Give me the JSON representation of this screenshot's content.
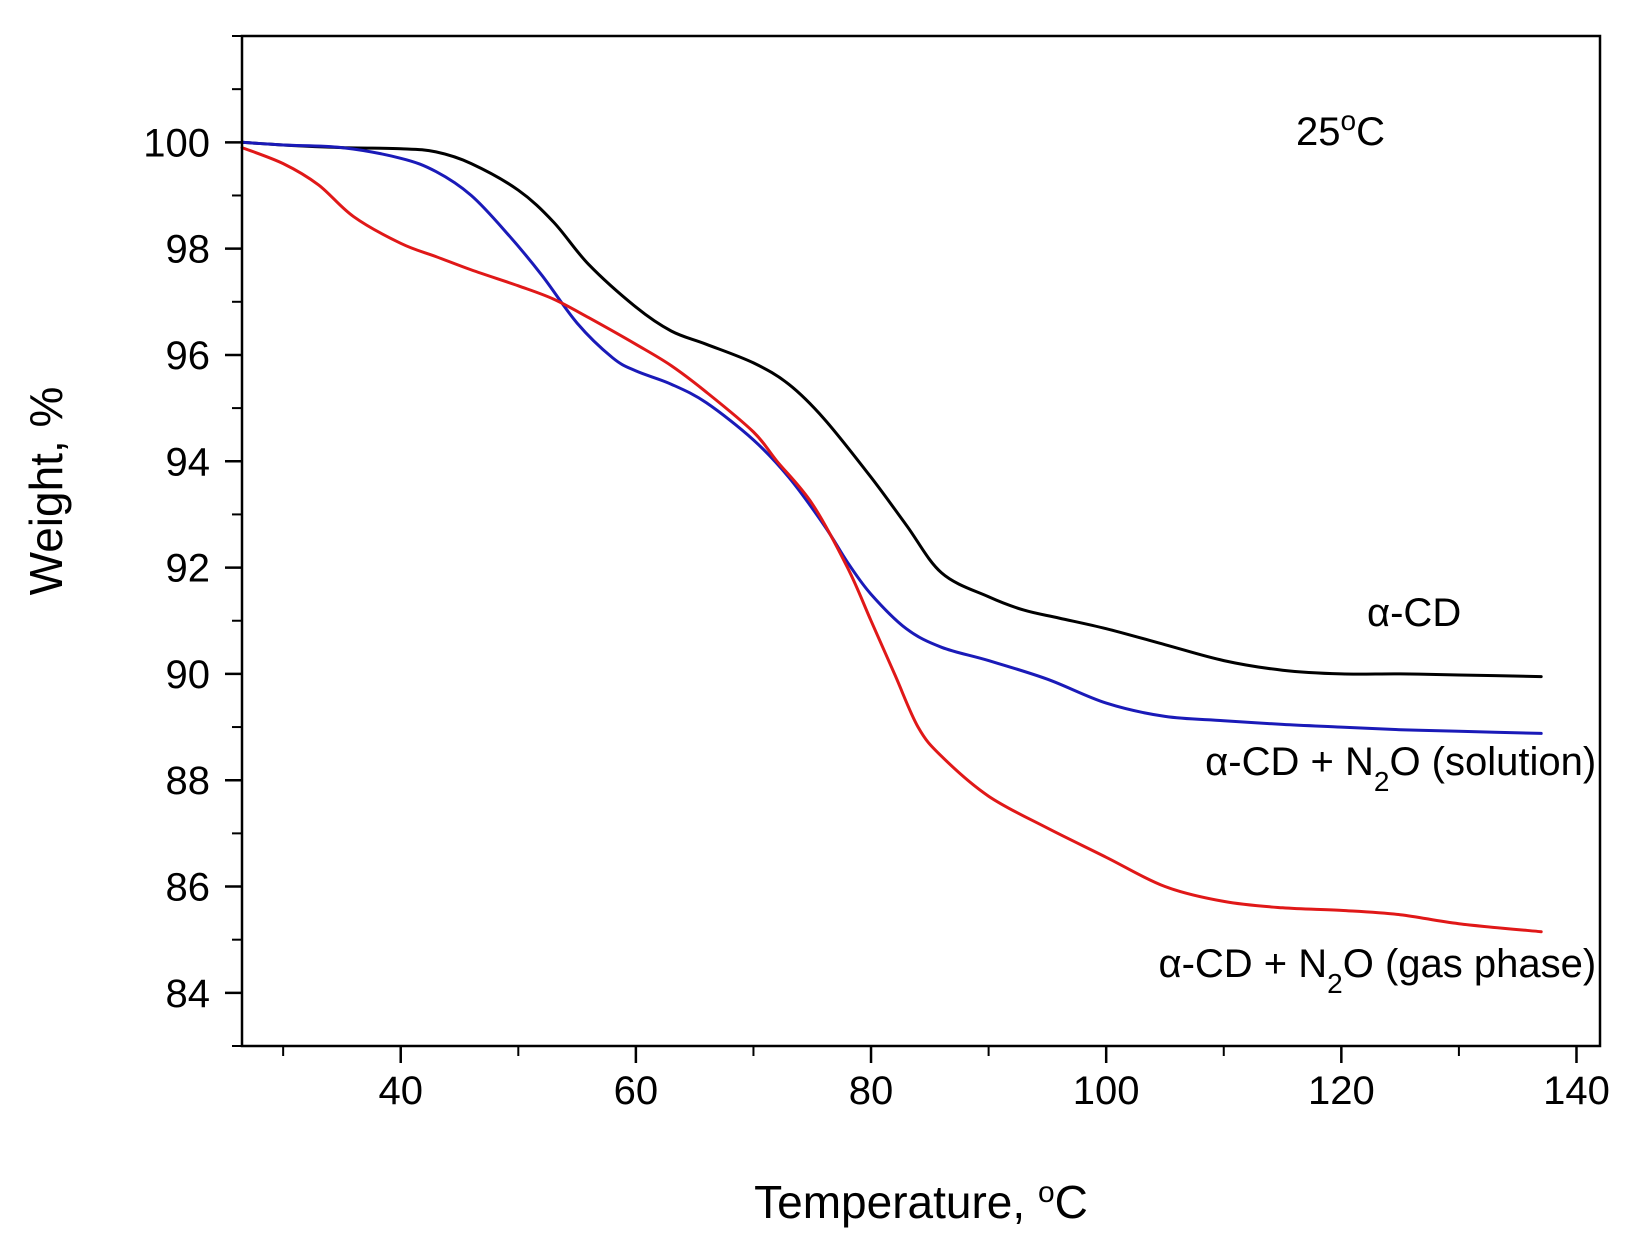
{
  "chart_data": {
    "type": "line",
    "title": "",
    "annotation": {
      "base": "25",
      "sup": "o",
      "tail": "C"
    },
    "xlabel": {
      "text": "Temperature, ",
      "sup": "o",
      "tail": "C"
    },
    "ylabel": "Weight, %",
    "xlim": [
      26.5,
      142
    ],
    "ylim": [
      83,
      102
    ],
    "xticks": [
      40,
      60,
      80,
      100,
      120,
      140
    ],
    "xminor": [
      30,
      50,
      70,
      90,
      110,
      130
    ],
    "yticks": [
      84,
      86,
      88,
      90,
      92,
      94,
      96,
      98,
      100
    ],
    "yminor": [
      83,
      85,
      87,
      89,
      91,
      93,
      95,
      97,
      99,
      101,
      102
    ],
    "grid": false,
    "series": [
      {
        "name": "α-CD",
        "color": "#000000",
        "label": {
          "prefix": "α-CD",
          "sub": "",
          "suffix": ""
        },
        "x": [
          26.5,
          30,
          35,
          40,
          43,
          46,
          50,
          53,
          56,
          60,
          63,
          66,
          70,
          73,
          76,
          80,
          83,
          86,
          90,
          93,
          96,
          100,
          105,
          110,
          115,
          120,
          125,
          130,
          137
        ],
        "y": [
          100.0,
          99.95,
          99.9,
          99.88,
          99.82,
          99.6,
          99.1,
          98.5,
          97.7,
          96.9,
          96.45,
          96.2,
          95.85,
          95.45,
          94.8,
          93.7,
          92.8,
          91.9,
          91.45,
          91.2,
          91.05,
          90.85,
          90.55,
          90.25,
          90.07,
          90.0,
          90.0,
          89.98,
          89.95
        ]
      },
      {
        "name": "α-CD + N2O (solution)",
        "color": "#1a1ab8",
        "label": {
          "prefix": "α-CD + N",
          "sub": "2",
          "suffix": "O (solution)"
        },
        "x": [
          26.5,
          30,
          35,
          40,
          43,
          46,
          49,
          52,
          55,
          58,
          60,
          63,
          66,
          70,
          73,
          76,
          78,
          80,
          83,
          86,
          90,
          95,
          100,
          105,
          110,
          115,
          120,
          125,
          130,
          137
        ],
        "y": [
          100.0,
          99.95,
          99.9,
          99.7,
          99.45,
          99.0,
          98.3,
          97.5,
          96.6,
          95.95,
          95.7,
          95.45,
          95.1,
          94.4,
          93.7,
          92.8,
          92.1,
          91.5,
          90.85,
          90.5,
          90.25,
          89.9,
          89.45,
          89.2,
          89.12,
          89.05,
          89.0,
          88.95,
          88.92,
          88.88
        ]
      },
      {
        "name": "α-CD + N2O (gas phase)",
        "color": "#e01818",
        "label": {
          "prefix": "α-CD + N",
          "sub": "2",
          "suffix": "O (gas phase)"
        },
        "x": [
          26.5,
          30,
          33,
          36,
          40,
          43,
          46,
          50,
          53,
          56,
          60,
          63,
          66,
          70,
          72,
          75,
          78,
          80,
          82,
          84,
          86,
          90,
          95,
          100,
          105,
          110,
          115,
          120,
          125,
          130,
          137
        ],
        "y": [
          99.9,
          99.6,
          99.2,
          98.6,
          98.1,
          97.85,
          97.6,
          97.3,
          97.05,
          96.7,
          96.2,
          95.8,
          95.3,
          94.55,
          94.0,
          93.2,
          92.0,
          91.0,
          90.0,
          89.0,
          88.45,
          87.7,
          87.1,
          86.55,
          86.0,
          85.72,
          85.6,
          85.55,
          85.47,
          85.3,
          85.15
        ]
      }
    ]
  }
}
